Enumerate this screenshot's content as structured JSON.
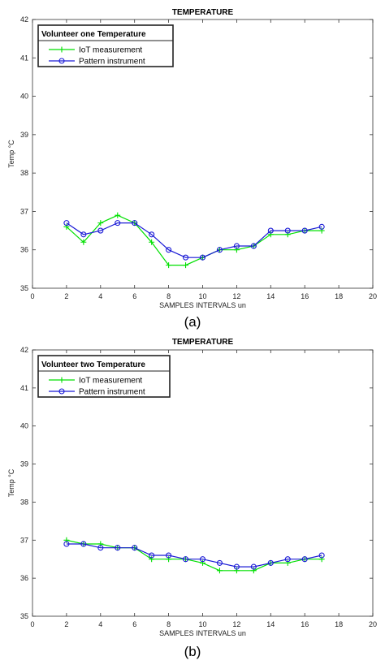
{
  "chart_data": [
    {
      "type": "line",
      "title": "TEMPERATURE",
      "xlabel": "SAMPLES INTERVALS un",
      "ylabel": "Temp °C",
      "caption": "(a)",
      "xlim": [
        0,
        20
      ],
      "ylim": [
        35,
        42
      ],
      "xticks": [
        0,
        2,
        4,
        6,
        8,
        10,
        12,
        14,
        16,
        18,
        20
      ],
      "yticks": [
        35,
        36,
        37,
        38,
        39,
        40,
        41,
        42
      ],
      "grid": false,
      "legend_title": "Volunteer one  Temperature",
      "legend_position": "top-left",
      "x": [
        2,
        3,
        4,
        5,
        6,
        7,
        8,
        9,
        10,
        11,
        12,
        13,
        14,
        15,
        16,
        17
      ],
      "series": [
        {
          "name": "IoT  measurement",
          "color": "#00e000",
          "marker": "plus",
          "values": [
            36.6,
            36.2,
            36.7,
            36.9,
            36.7,
            36.2,
            35.6,
            35.6,
            35.8,
            36.0,
            36.0,
            36.1,
            36.4,
            36.4,
            36.5,
            36.5
          ]
        },
        {
          "name": "Pattern instrument",
          "color": "#1a1ad6",
          "marker": "circle",
          "values": [
            36.7,
            36.4,
            36.5,
            36.7,
            36.7,
            36.4,
            36.0,
            35.8,
            35.8,
            36.0,
            36.1,
            36.1,
            36.5,
            36.5,
            36.5,
            36.6
          ]
        }
      ]
    },
    {
      "type": "line",
      "title": "TEMPERATURE",
      "xlabel": "SAMPLES INTERVALS un",
      "ylabel": "Temp °C",
      "caption": "(b)",
      "xlim": [
        0,
        20
      ],
      "ylim": [
        35,
        42
      ],
      "xticks": [
        0,
        2,
        4,
        6,
        8,
        10,
        12,
        14,
        16,
        18,
        20
      ],
      "yticks": [
        35,
        36,
        37,
        38,
        39,
        40,
        41,
        42
      ],
      "grid": false,
      "legend_title": "Volunteer two Temperature",
      "legend_position": "top-left",
      "x": [
        2,
        3,
        4,
        5,
        6,
        7,
        8,
        9,
        10,
        11,
        12,
        13,
        14,
        15,
        16,
        17
      ],
      "series": [
        {
          "name": "IoT  measurement",
          "color": "#00e000",
          "marker": "plus",
          "values": [
            37.0,
            36.9,
            36.9,
            36.8,
            36.8,
            36.5,
            36.5,
            36.5,
            36.4,
            36.2,
            36.2,
            36.2,
            36.4,
            36.4,
            36.5,
            36.5
          ]
        },
        {
          "name": "Pattern instrument",
          "color": "#1a1ad6",
          "marker": "circle",
          "values": [
            36.9,
            36.9,
            36.8,
            36.8,
            36.8,
            36.6,
            36.6,
            36.5,
            36.5,
            36.4,
            36.3,
            36.3,
            36.4,
            36.5,
            36.5,
            36.6
          ]
        }
      ]
    }
  ]
}
